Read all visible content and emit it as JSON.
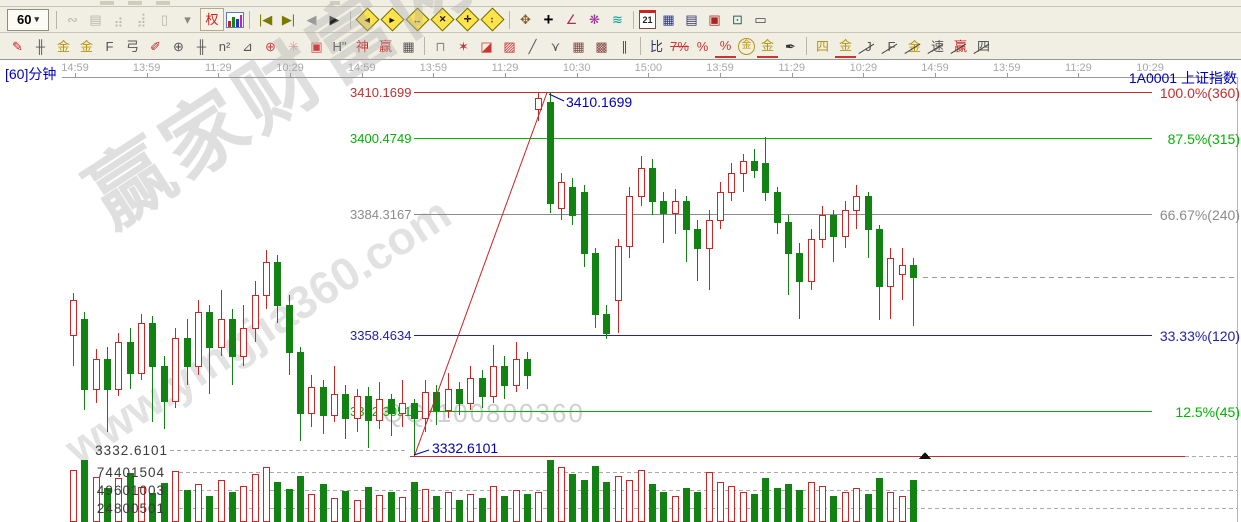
{
  "header": {
    "period_label": "[60]分钟",
    "symbol": "1A0001",
    "symbol_name": "上证指数"
  },
  "watermarks": {
    "brand": "赢家财富网",
    "url": "www.yingjia360.com",
    "qq": "QQ:100800360"
  },
  "toolbar": {
    "row1": [
      {
        "n": "period-60-dropdown",
        "g": "60",
        "cls": "btn60"
      },
      {
        "sep": true
      },
      {
        "n": "overlay-icon",
        "g": "∾",
        "c": "#b9b6aa"
      },
      {
        "n": "clipboard-icon",
        "g": "▤",
        "c": "#b9b6aa"
      },
      {
        "n": "bars-3-icon",
        "g": "⣴",
        "c": "#b9b6aa"
      },
      {
        "n": "bars-9-icon",
        "g": "⣼",
        "c": "#b9b6aa"
      },
      {
        "n": "candle-style-icon",
        "g": "▯",
        "c": "#b9b6aa"
      },
      {
        "n": "style-caret-icon",
        "g": "▾",
        "c": "#8a8878"
      },
      {
        "n": "exrights-icon",
        "g": "权",
        "c": "#cc2222",
        "cls": "boxed"
      },
      {
        "n": "chart-type-icon",
        "g": "",
        "cls": "hist"
      },
      {
        "sep": true
      },
      {
        "n": "first-page-icon",
        "g": "|◀",
        "c": "#7a7a00"
      },
      {
        "n": "last-page-icon",
        "g": "▶|",
        "c": "#7a7a00"
      },
      {
        "n": "prev-page-icon",
        "g": "◀",
        "c": "#9a9a9a"
      },
      {
        "n": "next-page-icon",
        "g": "▶",
        "c": "#222222"
      },
      {
        "sep": true
      },
      {
        "n": "zoom-left-icon",
        "g": "◄",
        "cls": "dia"
      },
      {
        "n": "zoom-right-icon",
        "g": "►",
        "cls": "dia"
      },
      {
        "n": "zoom-lr-icon",
        "g": "↔",
        "cls": "dia"
      },
      {
        "n": "compress-axis-icon",
        "g": "✕",
        "cls": "dia"
      },
      {
        "n": "expand-axis-icon",
        "g": "✛",
        "cls": "dia"
      },
      {
        "n": "zoom-ud-icon",
        "g": "↕",
        "cls": "dia"
      },
      {
        "sep": true
      },
      {
        "n": "hand-tool-icon",
        "g": "✥",
        "c": "#8a5a2a"
      },
      {
        "n": "crosshair-tool-icon",
        "g": "+",
        "c": "#000000",
        "cls": "big"
      },
      {
        "n": "angle-tool-icon",
        "g": "∠",
        "c": "#aa3355"
      },
      {
        "n": "net-tool-icon",
        "g": "❋",
        "c": "#993399"
      },
      {
        "n": "wave-tool-icon",
        "g": "≋",
        "c": "#009999"
      },
      {
        "sep": true
      },
      {
        "n": "calendar-icon",
        "g": "21",
        "cls": "cal"
      },
      {
        "n": "calculator-icon",
        "g": "▦",
        "c": "#223399"
      },
      {
        "n": "report-icon",
        "g": "▤",
        "c": "#333366"
      },
      {
        "n": "save-icon",
        "g": "▣",
        "c": "#aa2222"
      },
      {
        "n": "export-icon",
        "g": "⊡",
        "c": "#226666"
      },
      {
        "n": "print-icon",
        "g": "▭",
        "c": "#444444"
      }
    ],
    "row2": [
      {
        "n": "pen-tool-icon",
        "g": "✎",
        "c": "#cc2222"
      },
      {
        "n": "grid-lines-icon",
        "g": "╫",
        "c": "#555555"
      },
      {
        "n": "gold-grid-a-icon",
        "g": "金",
        "c": "#b8960c"
      },
      {
        "n": "gold-grid-b-icon",
        "g": "金",
        "c": "#b8960c"
      },
      {
        "n": "f-grid-icon",
        "g": "F",
        "c": "#555555"
      },
      {
        "n": "gong-grid-icon",
        "g": "弓",
        "c": "#555555"
      },
      {
        "n": "pen2-tool-icon",
        "g": "✐",
        "c": "#cc2222"
      },
      {
        "n": "circle-grid-icon",
        "g": "⊕",
        "c": "#555555"
      },
      {
        "n": "hash-grid-icon",
        "g": "╫",
        "c": "#555555"
      },
      {
        "n": "n2-grid-icon",
        "g": "n²",
        "c": "#555555"
      },
      {
        "n": "angle-line-icon",
        "g": "⊿",
        "c": "#555555"
      },
      {
        "n": "target-circle-icon",
        "g": "⊕",
        "c": "#cc4444"
      },
      {
        "n": "star-cycle-icon",
        "g": "✳",
        "c": "#dd9999"
      },
      {
        "n": "spiral-box-icon",
        "g": "▣",
        "c": "#cc4444"
      },
      {
        "n": "eta-mark-icon",
        "g": "Η\"",
        "c": "#444444"
      },
      {
        "n": "shen-tool-icon",
        "g": "神",
        "c": "#cc2222"
      },
      {
        "n": "ying-tool-icon",
        "g": "赢",
        "c": "#cc2222"
      },
      {
        "n": "abacus-icon",
        "g": "▦",
        "c": "#555555"
      },
      {
        "sep": true
      },
      {
        "n": "frame-tool-icon",
        "g": "⊓",
        "c": "#888888"
      },
      {
        "n": "gann-rays-icon",
        "g": "✶",
        "c": "#cc3333"
      },
      {
        "n": "gann-fan-icon",
        "g": "◪",
        "c": "#cc3333"
      },
      {
        "n": "gann-box-icon",
        "g": "▨",
        "c": "#cc3333"
      },
      {
        "n": "trend-pencil-icon",
        "g": "╱",
        "c": "#555555"
      },
      {
        "n": "zigzag-icon",
        "g": "⋎",
        "c": "#555555"
      },
      {
        "n": "grid-box-a-icon",
        "g": "▦",
        "c": "#884444"
      },
      {
        "n": "grid-box-b-icon",
        "g": "▩",
        "c": "#884444"
      },
      {
        "n": "parallel-lines-icon",
        "g": "∥",
        "c": "#555555"
      },
      {
        "sep": true
      },
      {
        "n": "stats-bars-icon",
        "g": "比",
        "c": "#333366"
      },
      {
        "n": "pct-strike-icon",
        "g": "7%",
        "c": "#cc3333",
        "cls": "strike"
      },
      {
        "n": "percent-icon",
        "g": "%",
        "c": "#cc3333"
      },
      {
        "n": "percent-line-icon",
        "g": "%",
        "c": "#cc3333",
        "cls": "ul"
      },
      {
        "n": "gold-circle-icon",
        "g": "金",
        "c": "#b8960c",
        "cls": "circ"
      },
      {
        "n": "gold-bar-icon",
        "g": "金",
        "c": "#b8960c",
        "cls": "ul"
      },
      {
        "n": "ink-pen-icon",
        "g": "✒",
        "c": "#333333"
      },
      {
        "sep": true
      },
      {
        "n": "si-gold-icon",
        "g": "四",
        "c": "#b8960c"
      },
      {
        "n": "gold-underline-icon",
        "g": "金",
        "c": "#b8960c",
        "cls": "ul"
      },
      {
        "n": "j-diagonal-icon",
        "g": "J",
        "c": "#555555",
        "cls": "diag"
      },
      {
        "n": "f-diagonal-icon",
        "g": "F",
        "c": "#555555",
        "cls": "diag"
      },
      {
        "n": "jin-diagonal-icon",
        "g": "金",
        "c": "#b8960c",
        "cls": "diag"
      },
      {
        "n": "su-diagonal-icon",
        "g": "速",
        "c": "#555555",
        "cls": "diag"
      },
      {
        "n": "ying-diagonal-icon",
        "g": "赢",
        "c": "#cc2222",
        "cls": "diag"
      },
      {
        "n": "si-diagonal-icon",
        "g": "四",
        "c": "#555555",
        "cls": "diag"
      }
    ]
  },
  "chart_data": {
    "type": "candlestick",
    "symbol": "1A0001",
    "symbol_name": "上证指数",
    "period": "60分钟",
    "ylim": [
      3329,
      3412
    ],
    "time_labels": [
      "14:59",
      "13:59",
      "11:29",
      "10:29",
      "14:59",
      "13:59",
      "11:29",
      "10:30",
      "15:00",
      "13:59",
      "11:29",
      "10:29",
      "14:59",
      "13:59",
      "11:29",
      "10:29"
    ],
    "fib_levels": [
      {
        "price": 3410.1699,
        "price_label": "3410.1699",
        "pct_label": "100.0%(360)",
        "color": "#c03030",
        "style": "solid"
      },
      {
        "price": 3400.4749,
        "price_label": "3400.4749",
        "pct_label": "87.5%(315)",
        "color": "#00b400",
        "style": "solid"
      },
      {
        "price": 3384.3167,
        "price_label": "3384.3167",
        "pct_label": "66.67%(240)",
        "color": "#8c8c8c",
        "style": "solid"
      },
      {
        "price": 3358.4634,
        "price_label": "3358.4634",
        "pct_label": "33.33%(120)",
        "color": "#2222aa",
        "style": "solid"
      },
      {
        "price": 3342.3051,
        "price_label": "3342.3051",
        "pct_label": "12.5%(45)",
        "color": "#00b400",
        "style": "solid"
      },
      {
        "price": 3332.6101,
        "price_label": "3332.6101",
        "pct_label": "",
        "color": "#c03030",
        "style": "solid+dashed"
      }
    ],
    "annotations": {
      "high_callout": "3410.1699",
      "low_callout": "3332.6101",
      "trendline": {
        "from_candle": 30,
        "from_price": 3332.6101,
        "to_candle": 42,
        "to_price": 3410.1699,
        "color": "#cc2222"
      },
      "last_price_dashed": 3370.9,
      "marker": {
        "type": "up-triangle",
        "price": 3332.61,
        "position": "right-of-last-candle",
        "color": "#111111"
      }
    },
    "volume_axis_labels": [
      "74401504",
      "49601003",
      "24800501"
    ],
    "colors": {
      "up": "#cc2626",
      "down": "#128312"
    },
    "candles": [
      [
        3358.5,
        3366.0,
        3367.5,
        3352.0,
        77000000
      ],
      [
        3362.0,
        3347.0,
        3363.5,
        3342.5,
        92000000
      ],
      [
        3347.0,
        3353.5,
        3355.5,
        3344.0,
        67000000
      ],
      [
        3353.5,
        3347.0,
        3356.0,
        3338.0,
        51000000
      ],
      [
        3347.0,
        3357.0,
        3359.0,
        3345.5,
        65000000
      ],
      [
        3357.0,
        3350.5,
        3360.0,
        3347.0,
        73000000
      ],
      [
        3350.5,
        3361.0,
        3363.0,
        3349.0,
        52000000
      ],
      [
        3361.0,
        3352.0,
        3362.5,
        3340.0,
        43000000
      ],
      [
        3352.0,
        3344.5,
        3354.0,
        3338.5,
        58000000
      ],
      [
        3344.5,
        3358.0,
        3360.0,
        3343.0,
        76000000
      ],
      [
        3358.0,
        3352.0,
        3362.0,
        3348.0,
        48000000
      ],
      [
        3352.0,
        3363.5,
        3366.0,
        3350.0,
        57000000
      ],
      [
        3363.5,
        3356.0,
        3365.0,
        3346.0,
        39000000
      ],
      [
        3356.0,
        3362.0,
        3368.0,
        3354.0,
        62000000
      ],
      [
        3362.0,
        3354.0,
        3364.0,
        3348.0,
        45000000
      ],
      [
        3354.0,
        3360.0,
        3365.0,
        3352.0,
        54000000
      ],
      [
        3360.0,
        3367.0,
        3370.0,
        3357.0,
        71000000
      ],
      [
        3367.0,
        3374.0,
        3376.5,
        3364.0,
        82000000
      ],
      [
        3374.0,
        3365.0,
        3375.5,
        3361.0,
        60000000
      ],
      [
        3365.0,
        3355.0,
        3367.0,
        3350.0,
        49000000
      ],
      [
        3355.0,
        3342.0,
        3356.0,
        3336.0,
        68000000
      ],
      [
        3342.0,
        3347.5,
        3350.0,
        3339.0,
        42000000
      ],
      [
        3347.5,
        3341.5,
        3349.0,
        3337.5,
        57000000
      ],
      [
        3341.5,
        3346.0,
        3352.0,
        3340.0,
        36000000
      ],
      [
        3346.0,
        3341.0,
        3348.0,
        3336.5,
        46000000
      ],
      [
        3341.0,
        3345.5,
        3347.0,
        3338.0,
        33000000
      ],
      [
        3345.5,
        3340.5,
        3347.5,
        3334.5,
        52000000
      ],
      [
        3340.5,
        3345.0,
        3348.5,
        3338.5,
        40000000
      ],
      [
        3345.0,
        3342.0,
        3346.0,
        3337.0,
        45000000
      ],
      [
        3342.0,
        3344.0,
        3349.0,
        3339.0,
        37000000
      ],
      [
        3344.0,
        3341.0,
        3345.0,
        3332.6101,
        60000000
      ],
      [
        3341.0,
        3346.5,
        3349.0,
        3338.0,
        49000000
      ],
      [
        3346.5,
        3342.5,
        3348.0,
        3339.5,
        39000000
      ],
      [
        3342.5,
        3347.0,
        3350.5,
        3341.0,
        45000000
      ],
      [
        3347.0,
        3344.0,
        3348.5,
        3341.5,
        33000000
      ],
      [
        3344.0,
        3349.5,
        3352.0,
        3342.5,
        42000000
      ],
      [
        3349.5,
        3345.5,
        3351.0,
        3343.0,
        36000000
      ],
      [
        3345.5,
        3352.0,
        3356.5,
        3344.0,
        54000000
      ],
      [
        3352.0,
        3348.0,
        3354.0,
        3345.0,
        39000000
      ],
      [
        3348.0,
        3353.5,
        3357.0,
        3346.5,
        48000000
      ],
      [
        3353.5,
        3350.0,
        3355.0,
        3347.0,
        42000000
      ],
      [
        3406.5,
        3409.0,
        3410.0,
        3404.0,
        45000000
      ],
      [
        3408.0,
        3386.5,
        3410.1699,
        3384.5,
        92000000
      ],
      [
        3385.5,
        3391.0,
        3393.0,
        3383.0,
        82000000
      ],
      [
        3390.0,
        3384.0,
        3392.0,
        3382.0,
        71000000
      ],
      [
        3389.0,
        3376.0,
        3390.5,
        3373.0,
        62000000
      ],
      [
        3376.0,
        3363.0,
        3377.0,
        3360.0,
        83000000
      ],
      [
        3363.0,
        3358.9,
        3365.0,
        3357.7,
        60000000
      ],
      [
        3366.0,
        3377.5,
        3379.0,
        3359.0,
        68000000
      ],
      [
        3377.5,
        3388.0,
        3390.0,
        3375.0,
        62000000
      ],
      [
        3388.0,
        3394.0,
        3396.5,
        3386.0,
        77000000
      ],
      [
        3394.0,
        3387.0,
        3396.0,
        3384.0,
        57000000
      ],
      [
        3387.0,
        3384.5,
        3389.0,
        3378.0,
        45000000
      ],
      [
        3384.5,
        3387.0,
        3389.5,
        3380.0,
        39000000
      ],
      [
        3387.0,
        3381.0,
        3388.0,
        3374.0,
        51000000
      ],
      [
        3381.0,
        3377.0,
        3383.0,
        3370.0,
        45000000
      ],
      [
        3377.0,
        3383.0,
        3385.0,
        3368.0,
        74000000
      ],
      [
        3383.0,
        3389.0,
        3391.0,
        3381.0,
        60000000
      ],
      [
        3389.0,
        3393.0,
        3395.0,
        3387.0,
        54000000
      ],
      [
        3393.0,
        3395.5,
        3397.0,
        3389.0,
        45000000
      ],
      [
        3395.5,
        3393.5,
        3398.0,
        3392.0,
        42000000
      ],
      [
        3395.0,
        3389.0,
        3400.6,
        3387.0,
        65000000
      ],
      [
        3389.0,
        3382.5,
        3390.0,
        3380.0,
        51000000
      ],
      [
        3382.5,
        3376.0,
        3384.0,
        3367.0,
        57000000
      ],
      [
        3376.0,
        3370.0,
        3378.0,
        3362.0,
        48000000
      ],
      [
        3370.0,
        3379.0,
        3381.0,
        3368.0,
        60000000
      ],
      [
        3379.0,
        3384.0,
        3386.0,
        3377.0,
        54000000
      ],
      [
        3384.0,
        3379.5,
        3385.0,
        3374.0,
        39000000
      ],
      [
        3379.5,
        3385.0,
        3387.0,
        3377.0,
        45000000
      ],
      [
        3385.0,
        3388.0,
        3390.5,
        3381.0,
        51000000
      ],
      [
        3388.0,
        3381.0,
        3389.0,
        3375.0,
        42000000
      ],
      [
        3381.0,
        3369.0,
        3382.0,
        3361.7,
        65000000
      ],
      [
        3369.0,
        3375.0,
        3377.0,
        3362.0,
        45000000
      ],
      [
        3371.5,
        3373.5,
        3377.0,
        3366.0,
        39000000
      ],
      [
        3373.5,
        3370.9,
        3375.0,
        3360.5,
        62000000
      ]
    ]
  }
}
